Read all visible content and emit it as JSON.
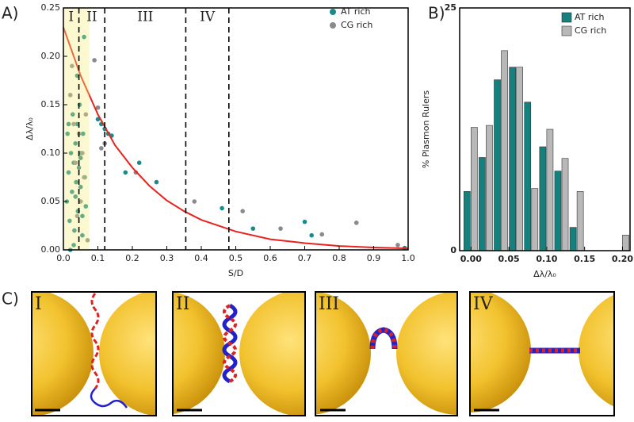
{
  "panel_labels": [
    "A)",
    "B)",
    "C)"
  ],
  "chart_data": [
    {
      "type": "scatter",
      "xlabel": "S/D",
      "ylabel": "Δλ/λ₀",
      "xlim": [
        0,
        1
      ],
      "ylim": [
        0,
        0.25
      ],
      "xticks": [
        {
          "value": 0,
          "label": "0.0"
        },
        0.1,
        0.2,
        0.3,
        0.4,
        0.5,
        0.6,
        0.7,
        0.8,
        0.9,
        {
          "value": 1,
          "label": "1.0"
        }
      ],
      "yticks": [
        {
          "value": 0,
          "label": "0.00"
        },
        {
          "value": 0.05,
          "label": "0.05"
        },
        {
          "value": 0.1,
          "label": "0.10"
        },
        {
          "value": 0.15,
          "label": "0.15"
        },
        {
          "value": 0.2,
          "label": "0.20"
        },
        {
          "value": 0.25,
          "label": "0.25"
        }
      ],
      "highlight": [
        0,
        0.075
      ],
      "highlight_color": "#f7ef7a",
      "dividers": [
        0.045,
        0.12,
        0.355,
        0.48
      ],
      "annotations": [
        "I",
        "II",
        "III",
        "IV"
      ],
      "legend": "upper right",
      "series": [
        {
          "name": "AT rich",
          "color": "#1a8b8b",
          "mode": "markers",
          "x": [
            0.01,
            0.012,
            0.015,
            0.018,
            0.02,
            0.022,
            0.025,
            0.027,
            0.03,
            0.032,
            0.035,
            0.037,
            0.04,
            0.042,
            0.045,
            0.047,
            0.05,
            0.052,
            0.055,
            0.057,
            0.06,
            0.062,
            0.065,
            0.02,
            0.03,
            0.04,
            0.05,
            0.015,
            0.035,
            0.055,
            0.1,
            0.11,
            0.12,
            0.13,
            0.14,
            0.18,
            0.22,
            0.27,
            0.46,
            0.55,
            0.7,
            0.72,
            0.99
          ],
          "values": [
            0.05,
            0.12,
            0.08,
            0.03,
            0.16,
            0.1,
            0.06,
            0.14,
            0.09,
            0.02,
            0.11,
            0.07,
            0.13,
            0.04,
            0.085,
            0.15,
            0.065,
            0.1,
            0.035,
            0.12,
            0.22,
            0.075,
            0.045,
            0,
            0.005,
            0.18,
            0.095,
            0.13,
            0.055,
            0.015,
            0.135,
            0.13,
            0.125,
            0.12,
            0.118,
            0.08,
            0.09,
            0.07,
            0.043,
            0.022,
            0.029,
            0.015,
            0.002
          ]
        },
        {
          "name": "CG rich",
          "color": "#8a8a8a",
          "mode": "markers",
          "x": [
            0.02,
            0.03,
            0.035,
            0.045,
            0.05,
            0.06,
            0.025,
            0.04,
            0.055,
            0.065,
            0.07,
            0.09,
            0.1,
            0.11,
            0.12,
            0.21,
            0.38,
            0.52,
            0.63,
            0.75,
            0.85,
            0.97
          ],
          "values": [
            0.16,
            0.13,
            0.09,
            0.12,
            0.05,
            0.075,
            0.19,
            0.035,
            0.1,
            0.14,
            0.01,
            0.196,
            0.147,
            0.105,
            0.11,
            0.08,
            0.05,
            0.04,
            0.022,
            0.016,
            0.028,
            0.005
          ]
        },
        {
          "color": "#e8231f",
          "mode": "line",
          "x": [
            0,
            0.05,
            0.1,
            0.15,
            0.2,
            0.25,
            0.3,
            0.35,
            0.4,
            0.5,
            0.6,
            0.7,
            0.8,
            0.9,
            1
          ],
          "values": [
            0.23,
            0.18,
            0.14,
            0.108,
            0.085,
            0.066,
            0.051,
            0.04,
            0.031,
            0.019,
            0.011,
            0.007,
            0.004,
            0.0025,
            0.0015
          ]
        }
      ]
    },
    {
      "type": "bar",
      "xlabel": "Δλ/λ₀",
      "ylabel": "% Plasmon Rulers",
      "xlim": [
        -0.015,
        0.21
      ],
      "ylim": [
        0,
        25
      ],
      "xticks": [
        {
          "value": 0,
          "label": "0.00"
        },
        {
          "value": 0.05,
          "label": "0.05"
        },
        {
          "value": 0.1,
          "label": "0.10"
        },
        {
          "value": 0.15,
          "label": "0.15"
        },
        {
          "value": 0.2,
          "label": "0.20"
        }
      ],
      "yticks": [
        0,
        25
      ],
      "legend": "upper right",
      "x": [
        0,
        0.02,
        0.04,
        0.06,
        0.08,
        0.1,
        0.12,
        0.14,
        0.16,
        0.18,
        0.2
      ],
      "series": [
        {
          "name": "AT rich",
          "color": "#15817f",
          "values": [
            6.1,
            9.6,
            17.6,
            18.9,
            15.3,
            10.7,
            8.2,
            2.4,
            0,
            0,
            0
          ]
        },
        {
          "name": "CG rich",
          "color": "#b8b8b8",
          "values": [
            12.7,
            12.9,
            20.6,
            18.9,
            6.4,
            12.5,
            9.5,
            6.1,
            0,
            0,
            1.6
          ]
        }
      ]
    }
  ],
  "diagram": {
    "labels": [
      "I",
      "II",
      "III",
      "IV"
    ]
  }
}
